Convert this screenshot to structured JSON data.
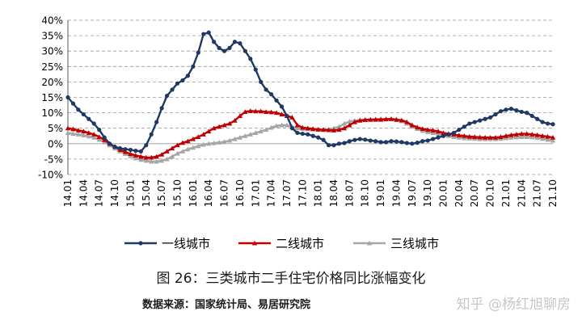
{
  "figure": {
    "title": "图 26：三类城市二手住宅价格同比涨幅变化",
    "source": "数据来源：国家统计局、易居研究院",
    "watermark": "知乎 @杨红旭聊房"
  },
  "colors": {
    "tier1": "#1f3864",
    "tier2": "#c00000",
    "tier3": "#a6a6a6",
    "grid": "#999999"
  },
  "chart_data": {
    "type": "line",
    "title": "",
    "xlabel": "",
    "ylabel": "",
    "ylim": [
      -10,
      40
    ],
    "yticks": [
      -10,
      -5,
      0,
      5,
      10,
      15,
      20,
      25,
      30,
      35,
      40
    ],
    "ytick_labels": [
      "-10%",
      "-5%",
      "0%",
      "5%",
      "10%",
      "15%",
      "20%",
      "25%",
      "30%",
      "35%",
      "40%"
    ],
    "grid": "horizontal dashed",
    "legend_position": "bottom",
    "x_start": "2014-01",
    "x_end": "2021-10",
    "x_ticks": [
      "14.01",
      "14.04",
      "14.07",
      "14.10",
      "15.01",
      "15.04",
      "15.07",
      "15.10",
      "16.01",
      "16.04",
      "16.07",
      "16.10",
      "17.01",
      "17.04",
      "17.07",
      "17.10",
      "18.01",
      "18.04",
      "18.07",
      "18.10",
      "19.01",
      "19.04",
      "19.07",
      "19.10",
      "20.01",
      "20.04",
      "20.07",
      "20.10",
      "21.01",
      "21.04",
      "21.07",
      "21.10"
    ],
    "series": [
      {
        "name": "一线城市",
        "marker": "circle",
        "values": [
          15.0,
          13.0,
          11.0,
          9.5,
          8.0,
          6.5,
          4.5,
          2.0,
          0.0,
          -1.0,
          -1.5,
          -1.8,
          -2.0,
          -2.3,
          -2.5,
          -0.5,
          3.0,
          7.0,
          11.5,
          15.5,
          17.5,
          19.5,
          20.5,
          22.0,
          25.0,
          29.5,
          35.5,
          36.0,
          33.0,
          31.0,
          30.0,
          31.0,
          33.0,
          32.5,
          30.0,
          27.5,
          24.0,
          20.0,
          17.5,
          16.0,
          14.0,
          12.0,
          9.0,
          5.0,
          3.5,
          3.2,
          3.0,
          2.5,
          2.0,
          1.2,
          -0.5,
          -0.5,
          0.0,
          0.2,
          0.8,
          1.2,
          1.5,
          1.3,
          1.0,
          0.8,
          0.5,
          0.5,
          0.8,
          0.7,
          0.5,
          0.2,
          0.0,
          0.3,
          0.8,
          1.0,
          1.5,
          2.0,
          2.5,
          3.0,
          3.5,
          4.5,
          5.5,
          6.5,
          7.0,
          7.5,
          8.0,
          8.5,
          9.5,
          10.5,
          11.0,
          11.3,
          10.8,
          10.3,
          10.0,
          9.0,
          8.0,
          7.0,
          6.5,
          6.3
        ]
      },
      {
        "name": "二线城市",
        "marker": "triangle",
        "values": [
          5.0,
          4.7,
          4.3,
          4.0,
          3.5,
          3.0,
          2.2,
          1.2,
          0.0,
          -1.0,
          -2.0,
          -2.7,
          -3.3,
          -3.8,
          -4.2,
          -4.5,
          -4.5,
          -4.2,
          -3.5,
          -2.5,
          -1.5,
          -0.5,
          0.3,
          0.8,
          1.5,
          2.2,
          3.0,
          4.0,
          5.0,
          5.5,
          6.0,
          6.5,
          7.5,
          9.0,
          10.3,
          10.6,
          10.5,
          10.5,
          10.3,
          10.2,
          10.0,
          9.5,
          9.0,
          8.5,
          6.0,
          5.2,
          5.0,
          4.8,
          4.6,
          4.5,
          4.4,
          4.3,
          4.5,
          5.0,
          6.0,
          7.0,
          7.5,
          7.7,
          7.8,
          7.8,
          7.8,
          7.9,
          8.0,
          7.8,
          7.6,
          7.0,
          6.0,
          5.3,
          4.8,
          4.5,
          4.3,
          4.0,
          3.5,
          3.2,
          3.0,
          2.7,
          2.5,
          2.3,
          2.2,
          2.1,
          2.0,
          2.0,
          2.0,
          2.2,
          2.5,
          2.8,
          3.0,
          3.2,
          3.2,
          3.0,
          2.8,
          2.5,
          2.3,
          2.0
        ]
      },
      {
        "name": "三线城市",
        "marker": "triangle",
        "values": [
          3.5,
          3.2,
          3.0,
          2.7,
          2.4,
          2.0,
          1.3,
          0.5,
          -0.5,
          -1.5,
          -2.5,
          -3.3,
          -4.0,
          -4.7,
          -5.2,
          -5.5,
          -5.8,
          -5.8,
          -5.5,
          -5.0,
          -4.2,
          -3.2,
          -2.5,
          -1.8,
          -1.3,
          -0.8,
          -0.3,
          0.0,
          0.2,
          0.4,
          0.6,
          1.0,
          1.5,
          2.0,
          2.5,
          3.0,
          3.5,
          4.0,
          4.5,
          5.2,
          5.8,
          6.0,
          6.0,
          5.5,
          5.0,
          4.8,
          4.7,
          4.6,
          4.5,
          4.5,
          4.6,
          5.0,
          5.5,
          6.5,
          7.2,
          7.5,
          7.7,
          7.8,
          7.8,
          7.9,
          8.0,
          8.0,
          7.9,
          7.7,
          7.3,
          6.5,
          5.5,
          4.8,
          4.2,
          3.8,
          3.5,
          3.2,
          2.8,
          2.5,
          2.2,
          2.0,
          1.8,
          1.7,
          1.6,
          1.5,
          1.5,
          1.5,
          1.5,
          1.6,
          1.8,
          2.0,
          2.1,
          2.2,
          2.2,
          2.1,
          1.9,
          1.6,
          1.3,
          1.0
        ]
      }
    ]
  }
}
